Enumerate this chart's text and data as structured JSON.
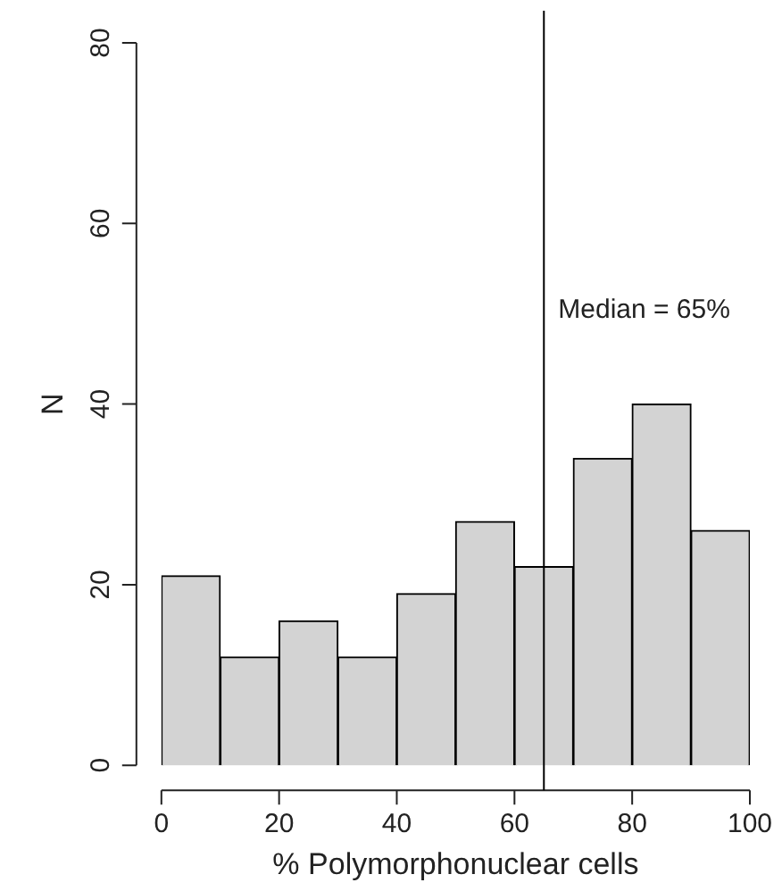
{
  "chart_data": {
    "type": "histogram",
    "xlabel": "% Polymorphonuclear cells",
    "ylabel": "N",
    "bins": [
      0,
      10,
      20,
      30,
      40,
      50,
      60,
      70,
      80,
      90,
      100
    ],
    "values": [
      21,
      12,
      16,
      12,
      19,
      27,
      22,
      34,
      40,
      26
    ],
    "color": "#d3d3d3",
    "xlim": [
      0,
      100
    ],
    "xticks": [
      0,
      20,
      40,
      60,
      80,
      100
    ],
    "ylim": [
      0,
      80
    ],
    "yticks": [
      0,
      20,
      40,
      60,
      80
    ],
    "grid": false,
    "legend": false,
    "ref_lines": [
      {
        "axis": "x",
        "value": 65,
        "label": "Median = 65%",
        "color": "#000000"
      }
    ]
  }
}
